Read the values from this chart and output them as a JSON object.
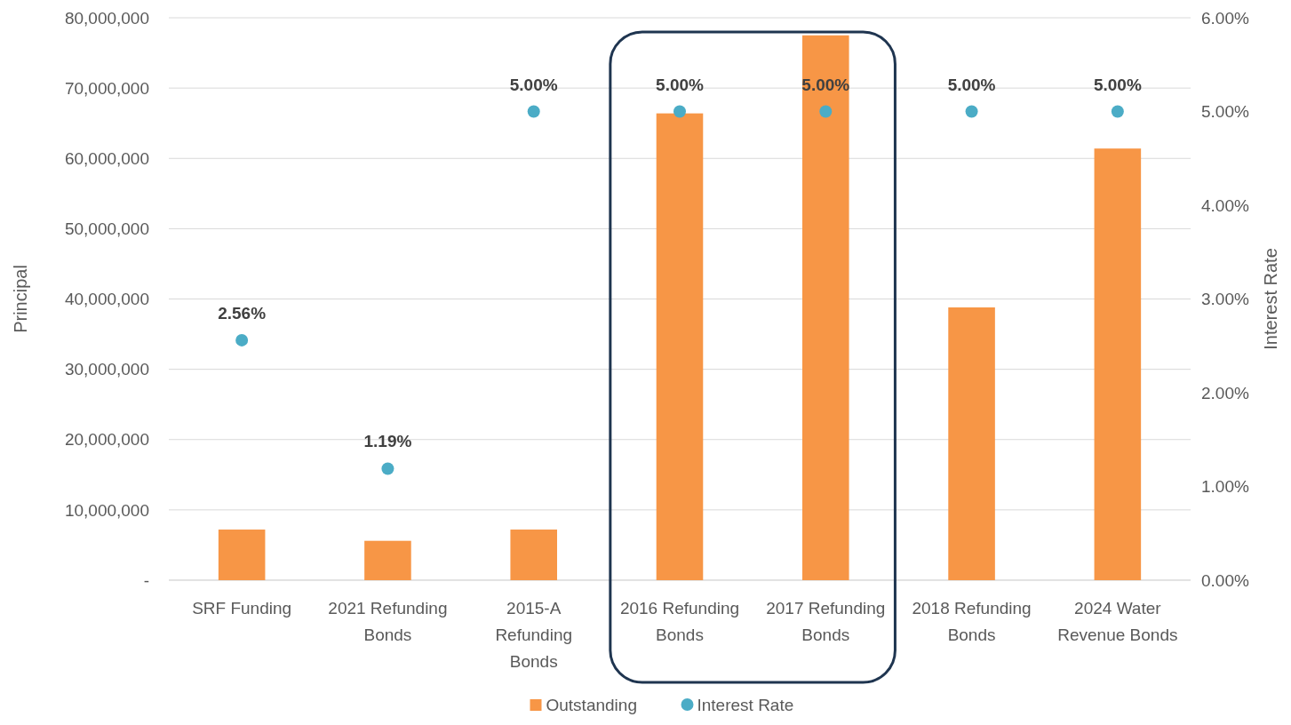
{
  "chart_data": {
    "type": "bar",
    "ylabel": "Principal",
    "y2label": "Interest Rate",
    "categories": [
      "SRF Funding",
      "2021 Refunding Bonds",
      "2015-A Refunding Bonds",
      "2016 Refunding Bonds",
      "2017 Refunding Bonds",
      "2018 Refunding Bonds",
      "2024 Water Revenue Bonds"
    ],
    "series": [
      {
        "name": "Outstanding",
        "color": "#f79646",
        "values": [
          7200000,
          5600000,
          7200000,
          66400000,
          77500000,
          38800000,
          61400000
        ]
      },
      {
        "name": "Interest Rate",
        "type": "scatter",
        "axis": "y2",
        "color": "#4bacc6",
        "marker": "circle",
        "values": [
          2.56,
          1.19,
          5,
          5,
          5,
          5,
          5
        ],
        "value_labels": [
          "2.56%",
          "1.19%",
          "5.00%",
          "5.00%",
          "5.00%",
          "5.00%",
          "5.00%"
        ]
      }
    ],
    "ylim": [
      0,
      80000000
    ],
    "yticks": [
      {
        "value": 0,
        "label": "-"
      },
      {
        "value": 10000000,
        "label": "10,000,000"
      },
      {
        "value": 20000000,
        "label": "20,000,000"
      },
      {
        "value": 30000000,
        "label": "30,000,000"
      },
      {
        "value": 40000000,
        "label": "40,000,000"
      },
      {
        "value": 50000000,
        "label": "50,000,000"
      },
      {
        "value": 60000000,
        "label": "60,000,000"
      },
      {
        "value": 70000000,
        "label": "70,000,000"
      },
      {
        "value": 80000000,
        "label": "80,000,000"
      }
    ],
    "y2lim": [
      0,
      6
    ],
    "y2ticks": [
      {
        "value": 0,
        "label": "0.00%"
      },
      {
        "value": 1,
        "label": "1.00%"
      },
      {
        "value": 2,
        "label": "2.00%"
      },
      {
        "value": 3,
        "label": "3.00%"
      },
      {
        "value": 4,
        "label": "4.00%"
      },
      {
        "value": 5,
        "label": "5.00%"
      },
      {
        "value": 6,
        "label": "6.00%"
      }
    ],
    "grid": "y",
    "legend": "bottom"
  }
}
